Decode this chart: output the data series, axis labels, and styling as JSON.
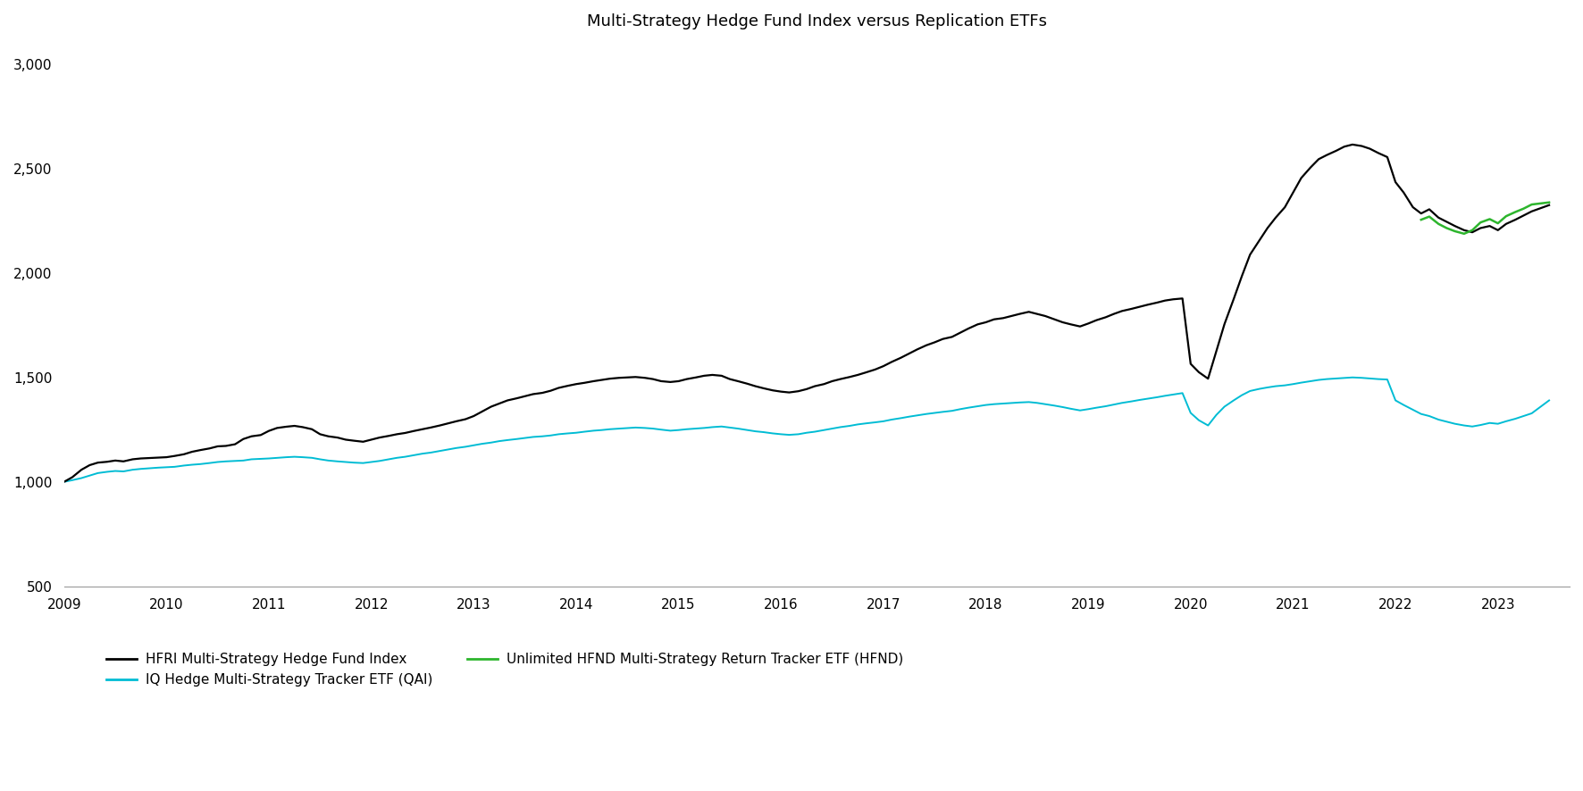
{
  "title": "Multi-Strategy Hedge Fund Index versus Replication ETFs",
  "title_fontsize": 13,
  "ylim": [
    500,
    3100
  ],
  "yticks": [
    500,
    1000,
    1500,
    2000,
    2500,
    3000
  ],
  "ytick_labels": [
    "500",
    "1,000",
    "1,500",
    "2,000",
    "2,500",
    "3,000"
  ],
  "xticks": [
    2009,
    2010,
    2011,
    2012,
    2013,
    2014,
    2015,
    2016,
    2017,
    2018,
    2019,
    2020,
    2021,
    2022,
    2023
  ],
  "background_color": "#ffffff",
  "line_colors": {
    "hfri": "#000000",
    "qai": "#00bcd4",
    "hfnd": "#2db52d"
  },
  "line_widths": {
    "hfri": 1.6,
    "qai": 1.4,
    "hfnd": 1.8
  },
  "legend_labels": {
    "hfri": "HFRI Multi-Strategy Hedge Fund Index",
    "qai": "IQ Hedge Multi-Strategy Tracker ETF (QAI)",
    "hfnd": "Unlimited HFND Multi-Strategy Return Tracker ETF (HFND)"
  },
  "hfri_x": [
    2009.0,
    2009.08,
    2009.17,
    2009.25,
    2009.33,
    2009.42,
    2009.5,
    2009.58,
    2009.67,
    2009.75,
    2009.83,
    2009.92,
    2010.0,
    2010.08,
    2010.17,
    2010.25,
    2010.33,
    2010.42,
    2010.5,
    2010.58,
    2010.67,
    2010.75,
    2010.83,
    2010.92,
    2011.0,
    2011.08,
    2011.17,
    2011.25,
    2011.33,
    2011.42,
    2011.5,
    2011.58,
    2011.67,
    2011.75,
    2011.83,
    2011.92,
    2012.0,
    2012.08,
    2012.17,
    2012.25,
    2012.33,
    2012.42,
    2012.5,
    2012.58,
    2012.67,
    2012.75,
    2012.83,
    2012.92,
    2013.0,
    2013.08,
    2013.17,
    2013.25,
    2013.33,
    2013.42,
    2013.5,
    2013.58,
    2013.67,
    2013.75,
    2013.83,
    2013.92,
    2014.0,
    2014.08,
    2014.17,
    2014.25,
    2014.33,
    2014.42,
    2014.5,
    2014.58,
    2014.67,
    2014.75,
    2014.83,
    2014.92,
    2015.0,
    2015.08,
    2015.17,
    2015.25,
    2015.33,
    2015.42,
    2015.5,
    2015.58,
    2015.67,
    2015.75,
    2015.83,
    2015.92,
    2016.0,
    2016.08,
    2016.17,
    2016.25,
    2016.33,
    2016.42,
    2016.5,
    2016.58,
    2016.67,
    2016.75,
    2016.83,
    2016.92,
    2017.0,
    2017.08,
    2017.17,
    2017.25,
    2017.33,
    2017.42,
    2017.5,
    2017.58,
    2017.67,
    2017.75,
    2017.83,
    2017.92,
    2018.0,
    2018.08,
    2018.17,
    2018.25,
    2018.33,
    2018.42,
    2018.5,
    2018.58,
    2018.67,
    2018.75,
    2018.83,
    2018.92,
    2019.0,
    2019.08,
    2019.17,
    2019.25,
    2019.33,
    2019.42,
    2019.5,
    2019.58,
    2019.67,
    2019.75,
    2019.83,
    2019.92,
    2020.0,
    2020.08,
    2020.17,
    2020.25,
    2020.33,
    2020.42,
    2020.5,
    2020.58,
    2020.67,
    2020.75,
    2020.83,
    2020.92,
    2021.0,
    2021.08,
    2021.17,
    2021.25,
    2021.33,
    2021.42,
    2021.5,
    2021.58,
    2021.67,
    2021.75,
    2021.83,
    2021.92,
    2022.0,
    2022.08,
    2022.17,
    2022.25,
    2022.33,
    2022.42,
    2022.5,
    2022.58,
    2022.67,
    2022.75,
    2022.83,
    2022.92,
    2023.0,
    2023.08,
    2023.17,
    2023.25,
    2023.33,
    2023.5
  ],
  "hfri_y": [
    1000,
    1022,
    1058,
    1080,
    1092,
    1096,
    1102,
    1098,
    1108,
    1112,
    1114,
    1116,
    1118,
    1124,
    1132,
    1144,
    1152,
    1160,
    1170,
    1172,
    1180,
    1205,
    1218,
    1224,
    1244,
    1258,
    1264,
    1268,
    1262,
    1252,
    1228,
    1218,
    1212,
    1202,
    1197,
    1192,
    1202,
    1212,
    1220,
    1228,
    1234,
    1244,
    1252,
    1260,
    1270,
    1280,
    1290,
    1300,
    1315,
    1336,
    1360,
    1375,
    1390,
    1400,
    1410,
    1420,
    1426,
    1436,
    1450,
    1460,
    1468,
    1474,
    1482,
    1488,
    1494,
    1498,
    1500,
    1502,
    1498,
    1492,
    1482,
    1478,
    1482,
    1492,
    1500,
    1508,
    1512,
    1508,
    1492,
    1482,
    1470,
    1458,
    1448,
    1438,
    1432,
    1428,
    1434,
    1444,
    1458,
    1468,
    1482,
    1492,
    1502,
    1512,
    1524,
    1538,
    1554,
    1574,
    1594,
    1614,
    1634,
    1654,
    1668,
    1684,
    1694,
    1714,
    1734,
    1754,
    1764,
    1778,
    1784,
    1794,
    1804,
    1814,
    1804,
    1794,
    1778,
    1764,
    1754,
    1744,
    1758,
    1774,
    1788,
    1804,
    1818,
    1828,
    1838,
    1848,
    1858,
    1868,
    1874,
    1878,
    1565,
    1525,
    1494,
    1625,
    1755,
    1875,
    1985,
    2088,
    2155,
    2215,
    2265,
    2315,
    2385,
    2455,
    2505,
    2545,
    2565,
    2585,
    2605,
    2615,
    2608,
    2595,
    2575,
    2555,
    2435,
    2385,
    2315,
    2285,
    2305,
    2265,
    2245,
    2225,
    2205,
    2195,
    2215,
    2225,
    2205,
    2235,
    2255,
    2275,
    2295,
    2325
  ],
  "qai_x": [
    2009.0,
    2009.08,
    2009.17,
    2009.25,
    2009.33,
    2009.42,
    2009.5,
    2009.58,
    2009.67,
    2009.75,
    2009.83,
    2009.92,
    2010.0,
    2010.08,
    2010.17,
    2010.25,
    2010.33,
    2010.42,
    2010.5,
    2010.58,
    2010.67,
    2010.75,
    2010.83,
    2010.92,
    2011.0,
    2011.08,
    2011.17,
    2011.25,
    2011.33,
    2011.42,
    2011.5,
    2011.58,
    2011.67,
    2011.75,
    2011.83,
    2011.92,
    2012.0,
    2012.08,
    2012.17,
    2012.25,
    2012.33,
    2012.42,
    2012.5,
    2012.58,
    2012.67,
    2012.75,
    2012.83,
    2012.92,
    2013.0,
    2013.08,
    2013.17,
    2013.25,
    2013.33,
    2013.42,
    2013.5,
    2013.58,
    2013.67,
    2013.75,
    2013.83,
    2013.92,
    2014.0,
    2014.08,
    2014.17,
    2014.25,
    2014.33,
    2014.42,
    2014.5,
    2014.58,
    2014.67,
    2014.75,
    2014.83,
    2014.92,
    2015.0,
    2015.08,
    2015.17,
    2015.25,
    2015.33,
    2015.42,
    2015.5,
    2015.58,
    2015.67,
    2015.75,
    2015.83,
    2015.92,
    2016.0,
    2016.08,
    2016.17,
    2016.25,
    2016.33,
    2016.42,
    2016.5,
    2016.58,
    2016.67,
    2016.75,
    2016.83,
    2016.92,
    2017.0,
    2017.08,
    2017.17,
    2017.25,
    2017.33,
    2017.42,
    2017.5,
    2017.58,
    2017.67,
    2017.75,
    2017.83,
    2017.92,
    2018.0,
    2018.08,
    2018.17,
    2018.25,
    2018.33,
    2018.42,
    2018.5,
    2018.58,
    2018.67,
    2018.75,
    2018.83,
    2018.92,
    2019.0,
    2019.08,
    2019.17,
    2019.25,
    2019.33,
    2019.42,
    2019.5,
    2019.58,
    2019.67,
    2019.75,
    2019.83,
    2019.92,
    2020.0,
    2020.08,
    2020.17,
    2020.25,
    2020.33,
    2020.42,
    2020.5,
    2020.58,
    2020.67,
    2020.75,
    2020.83,
    2020.92,
    2021.0,
    2021.08,
    2021.17,
    2021.25,
    2021.33,
    2021.42,
    2021.5,
    2021.58,
    2021.67,
    2021.75,
    2021.83,
    2021.92,
    2022.0,
    2022.08,
    2022.17,
    2022.25,
    2022.33,
    2022.42,
    2022.5,
    2022.58,
    2022.67,
    2022.75,
    2022.83,
    2022.92,
    2023.0,
    2023.08,
    2023.17,
    2023.25,
    2023.33,
    2023.5
  ],
  "qai_y": [
    1000,
    1008,
    1018,
    1030,
    1042,
    1048,
    1052,
    1050,
    1058,
    1062,
    1065,
    1068,
    1070,
    1072,
    1078,
    1082,
    1085,
    1090,
    1095,
    1098,
    1100,
    1102,
    1108,
    1110,
    1112,
    1115,
    1118,
    1120,
    1118,
    1115,
    1108,
    1102,
    1098,
    1095,
    1092,
    1090,
    1095,
    1100,
    1108,
    1115,
    1120,
    1128,
    1135,
    1140,
    1148,
    1155,
    1162,
    1168,
    1175,
    1182,
    1188,
    1195,
    1200,
    1205,
    1210,
    1215,
    1218,
    1222,
    1228,
    1232,
    1235,
    1240,
    1245,
    1248,
    1252,
    1255,
    1258,
    1260,
    1258,
    1255,
    1250,
    1245,
    1248,
    1252,
    1255,
    1258,
    1262,
    1265,
    1260,
    1255,
    1248,
    1242,
    1238,
    1232,
    1228,
    1225,
    1228,
    1235,
    1240,
    1248,
    1255,
    1262,
    1268,
    1275,
    1280,
    1285,
    1290,
    1298,
    1305,
    1312,
    1318,
    1325,
    1330,
    1335,
    1340,
    1348,
    1355,
    1362,
    1368,
    1372,
    1375,
    1378,
    1380,
    1382,
    1378,
    1372,
    1365,
    1358,
    1350,
    1342,
    1348,
    1355,
    1362,
    1370,
    1378,
    1385,
    1392,
    1398,
    1405,
    1412,
    1418,
    1425,
    1330,
    1295,
    1270,
    1320,
    1360,
    1390,
    1415,
    1435,
    1445,
    1452,
    1458,
    1462,
    1468,
    1475,
    1482,
    1488,
    1492,
    1495,
    1498,
    1500,
    1498,
    1495,
    1492,
    1490,
    1390,
    1368,
    1345,
    1325,
    1315,
    1298,
    1288,
    1278,
    1270,
    1265,
    1272,
    1282,
    1278,
    1290,
    1302,
    1315,
    1328,
    1390
  ],
  "hfnd_x": [
    2022.25,
    2022.33,
    2022.42,
    2022.5,
    2022.58,
    2022.67,
    2022.75,
    2022.83,
    2022.92,
    2023.0,
    2023.08,
    2023.17,
    2023.25,
    2023.33,
    2023.5
  ],
  "hfnd_y": [
    2255,
    2270,
    2235,
    2215,
    2200,
    2188,
    2205,
    2242,
    2258,
    2238,
    2272,
    2292,
    2308,
    2328,
    2338
  ]
}
